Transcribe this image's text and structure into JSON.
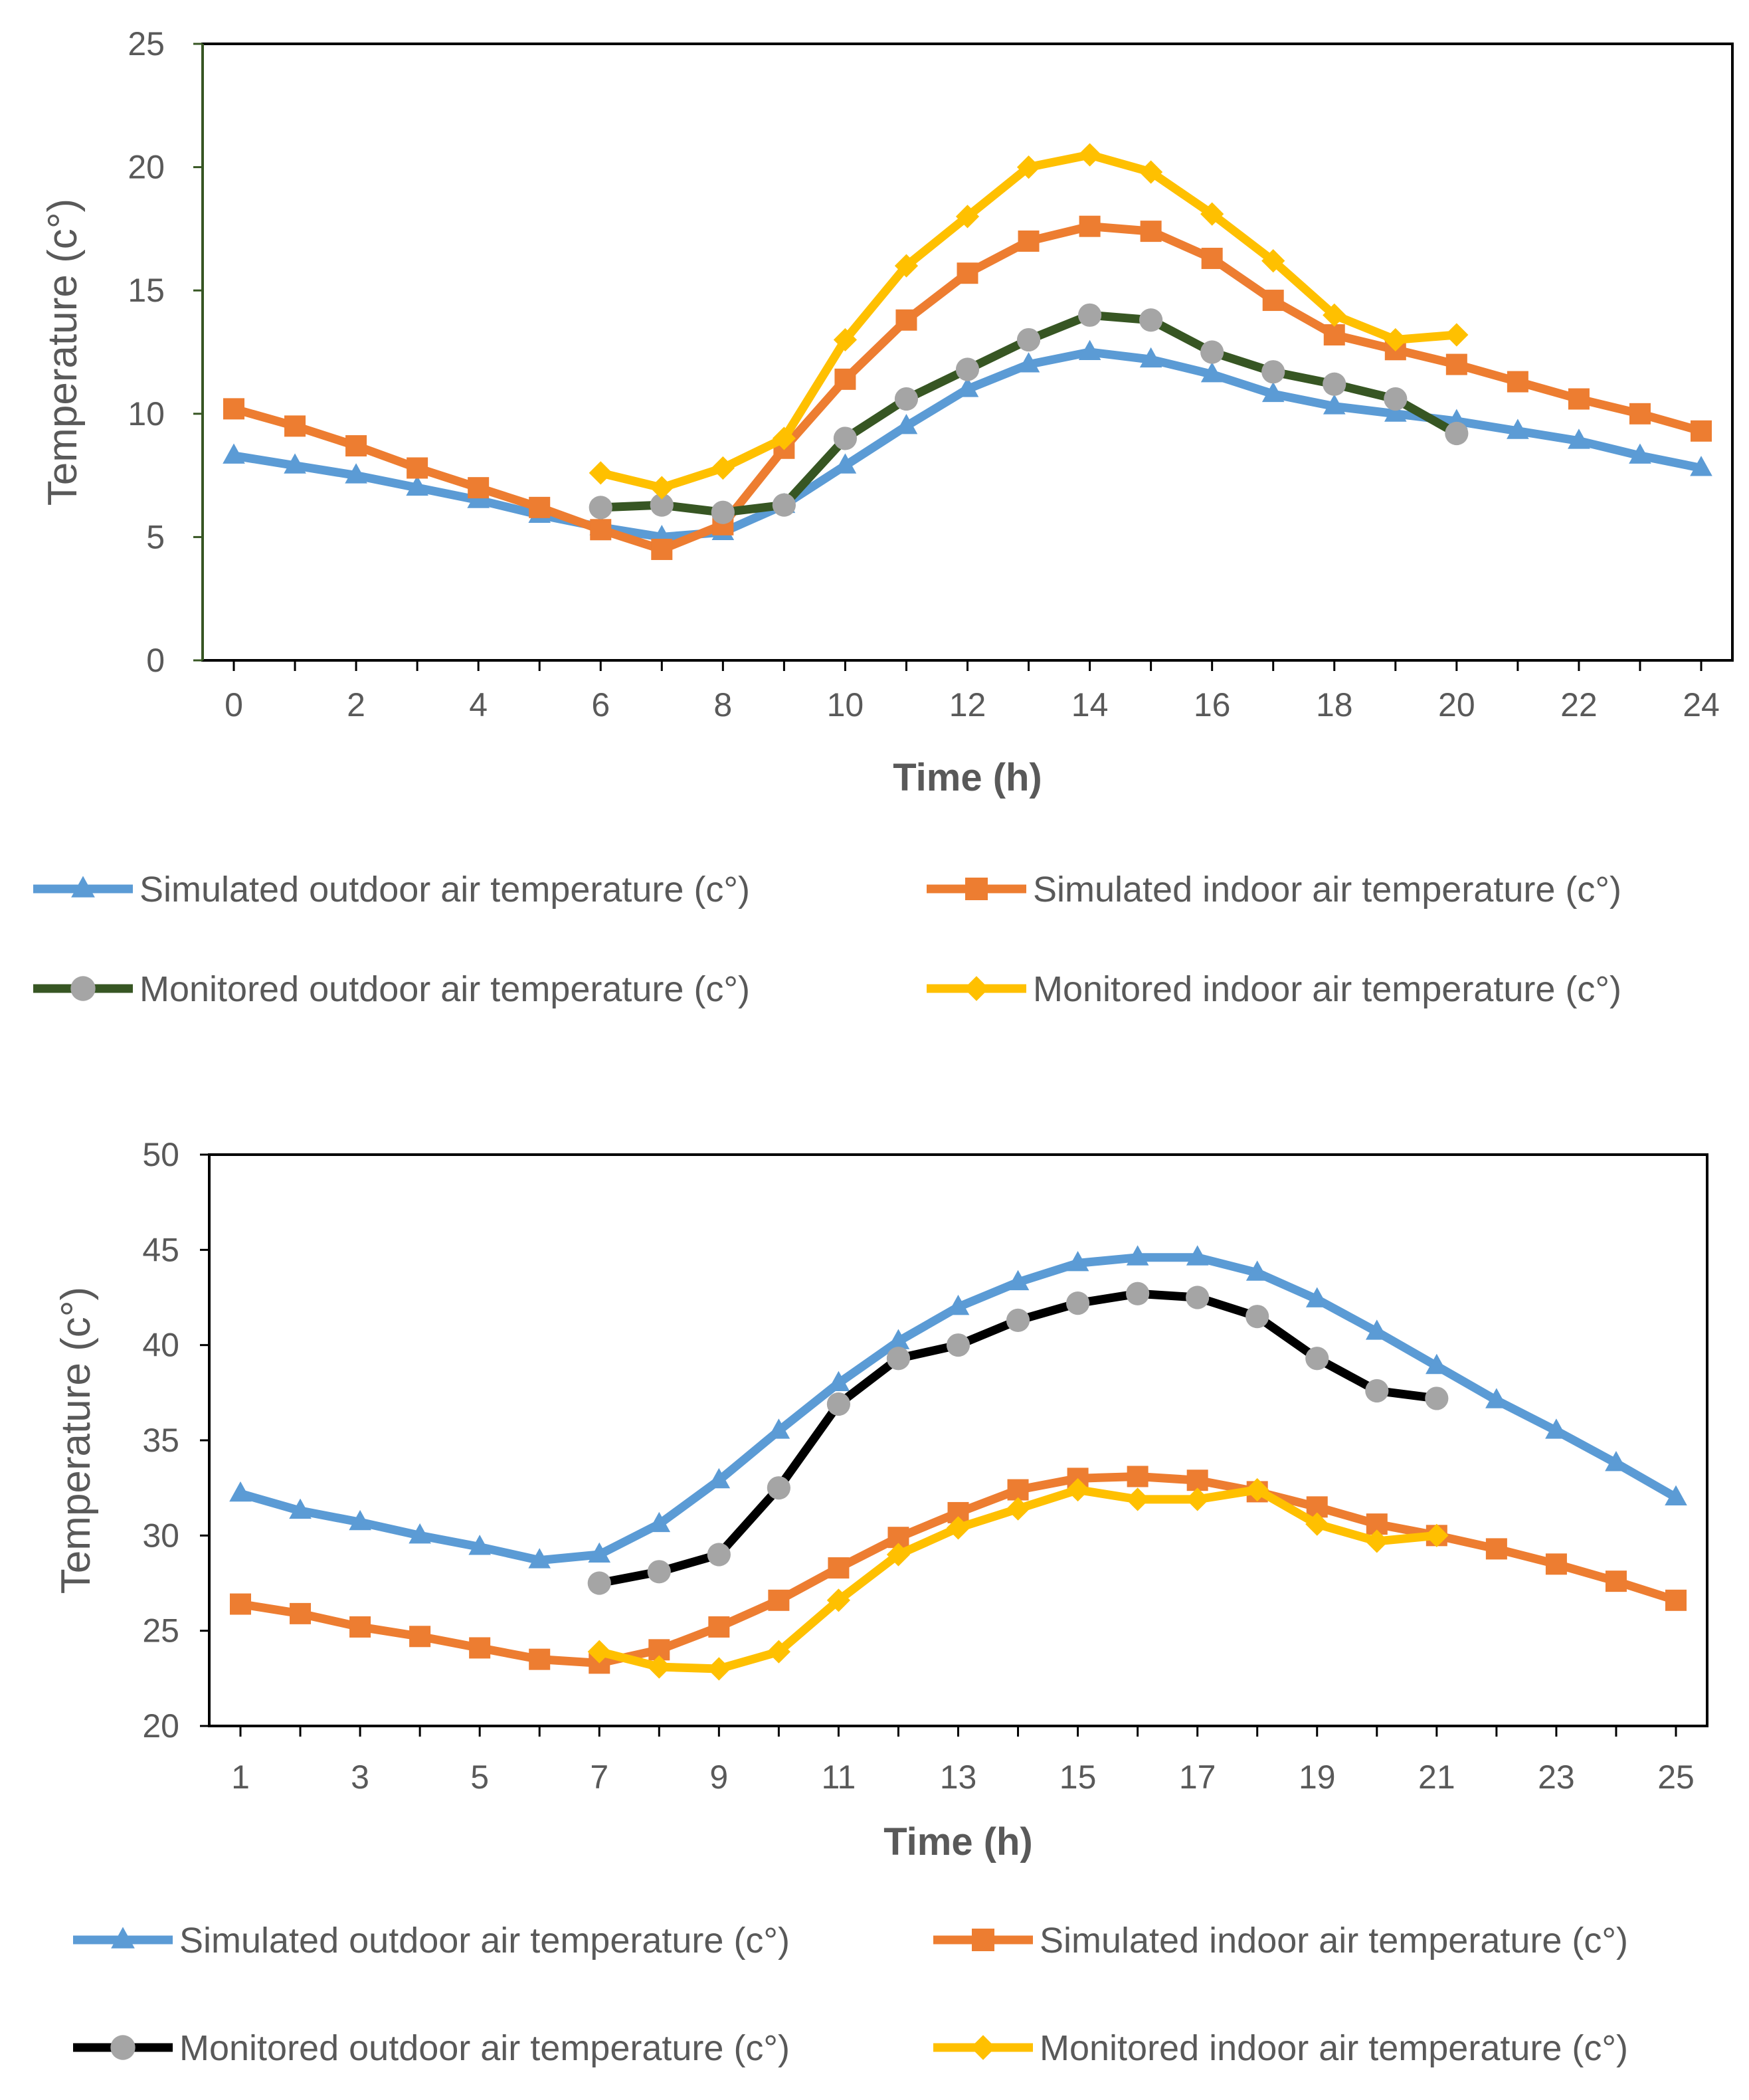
{
  "chart_data": [
    {
      "type": "line",
      "xlabel": "Time (h)",
      "ylabel": "Temperature (c°)",
      "xlim": [
        0,
        24
      ],
      "ylim": [
        0,
        25
      ],
      "x_ticks": [
        "0",
        "2",
        "4",
        "6",
        "8",
        "10",
        "12",
        "14",
        "16",
        "18",
        "20",
        "22",
        "24"
      ],
      "y_ticks": [
        "0",
        "5",
        "10",
        "15",
        "20",
        "25"
      ],
      "grid": false,
      "series": [
        {
          "name": "Simulated outdoor air temperature (c°)",
          "color": "#5B9BD5",
          "marker": "triangle",
          "x": [
            0,
            1,
            2,
            3,
            4,
            5,
            6,
            7,
            8,
            9,
            10,
            11,
            12,
            13,
            14,
            15,
            16,
            17,
            18,
            19,
            20,
            21,
            22,
            23,
            24
          ],
          "values": [
            8.3,
            7.9,
            7.5,
            7.0,
            6.5,
            5.9,
            5.4,
            5.0,
            5.2,
            6.3,
            7.9,
            9.5,
            11.0,
            12.0,
            12.5,
            12.2,
            11.6,
            10.8,
            10.3,
            10.0,
            9.7,
            9.3,
            8.9,
            8.3,
            7.8
          ]
        },
        {
          "name": "Simulated indoor air temperature (c°)",
          "color": "#ED7D31",
          "marker": "square",
          "x": [
            0,
            1,
            2,
            3,
            4,
            5,
            6,
            7,
            8,
            9,
            10,
            11,
            12,
            13,
            14,
            15,
            16,
            17,
            18,
            19,
            20,
            21,
            22,
            23,
            24
          ],
          "values": [
            10.2,
            9.5,
            8.7,
            7.8,
            7.0,
            6.2,
            5.3,
            4.5,
            5.5,
            8.6,
            11.4,
            13.8,
            15.7,
            17.0,
            17.6,
            17.4,
            16.3,
            14.6,
            13.2,
            12.6,
            12.0,
            11.3,
            10.6,
            10.0,
            9.3
          ]
        },
        {
          "name": "Monitored outdoor air temperature (c°)",
          "color": "#375623",
          "marker": "circle",
          "marker_color": "#A5A5A5",
          "x": [
            6,
            7,
            8,
            9,
            10,
            11,
            12,
            13,
            14,
            15,
            16,
            17,
            18,
            19,
            20
          ],
          "values": [
            6.2,
            6.3,
            6.0,
            6.3,
            9.0,
            10.6,
            11.8,
            13.0,
            14.0,
            13.8,
            12.5,
            11.7,
            11.2,
            10.6,
            9.2
          ]
        },
        {
          "name": "Monitored indoor air temperature (c°)",
          "color": "#FFC000",
          "marker": "diamond",
          "x": [
            6,
            7,
            8,
            9,
            10,
            11,
            12,
            13,
            14,
            15,
            16,
            17,
            18,
            19,
            20
          ],
          "values": [
            7.6,
            7.0,
            7.8,
            9.0,
            13.0,
            16.0,
            18.0,
            20.0,
            20.5,
            19.8,
            18.1,
            16.2,
            14.0,
            13.0,
            13.2
          ]
        }
      ]
    },
    {
      "type": "line",
      "xlabel": "Time (h)",
      "ylabel": "Temperature (c°)",
      "xlim": [
        1,
        25
      ],
      "ylim": [
        20,
        50
      ],
      "x_ticks": [
        "1",
        "3",
        "5",
        "7",
        "9",
        "11",
        "13",
        "15",
        "17",
        "19",
        "21",
        "23",
        "25"
      ],
      "y_ticks": [
        "20",
        "25",
        "30",
        "35",
        "40",
        "45",
        "50"
      ],
      "grid": false,
      "series": [
        {
          "name": "Simulated outdoor air temperature (c°)",
          "color": "#5B9BD5",
          "marker": "triangle",
          "x": [
            1,
            2,
            3,
            4,
            5,
            6,
            7,
            8,
            9,
            10,
            11,
            12,
            13,
            14,
            15,
            16,
            17,
            18,
            19,
            20,
            21,
            22,
            23,
            24,
            25
          ],
          "values": [
            32.2,
            31.3,
            30.7,
            30.0,
            29.4,
            28.7,
            29.0,
            30.6,
            32.9,
            35.5,
            38.0,
            40.2,
            42.0,
            43.3,
            44.3,
            44.6,
            44.6,
            43.8,
            42.4,
            40.7,
            38.9,
            37.1,
            35.5,
            33.8,
            32.0
          ]
        },
        {
          "name": "Simulated indoor air temperature (c°)",
          "color": "#ED7D31",
          "marker": "square",
          "x": [
            1,
            2,
            3,
            4,
            5,
            6,
            7,
            8,
            9,
            10,
            11,
            12,
            13,
            14,
            15,
            16,
            17,
            18,
            19,
            20,
            21,
            22,
            23,
            24,
            25
          ],
          "values": [
            26.4,
            25.9,
            25.2,
            24.7,
            24.1,
            23.5,
            23.3,
            24.0,
            25.2,
            26.6,
            28.3,
            29.9,
            31.2,
            32.4,
            33.0,
            33.1,
            32.9,
            32.3,
            31.5,
            30.6,
            30.0,
            29.3,
            28.5,
            27.6,
            26.6
          ]
        },
        {
          "name": "Monitored outdoor air temperature (c°)",
          "color": "#000000",
          "marker": "circle",
          "marker_color": "#A5A5A5",
          "x": [
            7,
            8,
            9,
            10,
            11,
            12,
            13,
            14,
            15,
            16,
            17,
            18,
            19,
            20,
            21
          ],
          "values": [
            27.5,
            28.1,
            29.0,
            32.5,
            36.9,
            39.3,
            40.0,
            41.3,
            42.2,
            42.7,
            42.5,
            41.5,
            39.3,
            37.6,
            37.2
          ]
        },
        {
          "name": "Monitored indoor air temperature (c°)",
          "color": "#FFC000",
          "marker": "diamond",
          "x": [
            7,
            8,
            9,
            10,
            11,
            12,
            13,
            14,
            15,
            16,
            17,
            18,
            19,
            20,
            21
          ],
          "values": [
            23.9,
            23.1,
            23.0,
            23.9,
            26.6,
            29.0,
            30.4,
            31.4,
            32.4,
            31.9,
            31.9,
            32.4,
            30.6,
            29.7,
            30.0
          ]
        }
      ]
    }
  ]
}
